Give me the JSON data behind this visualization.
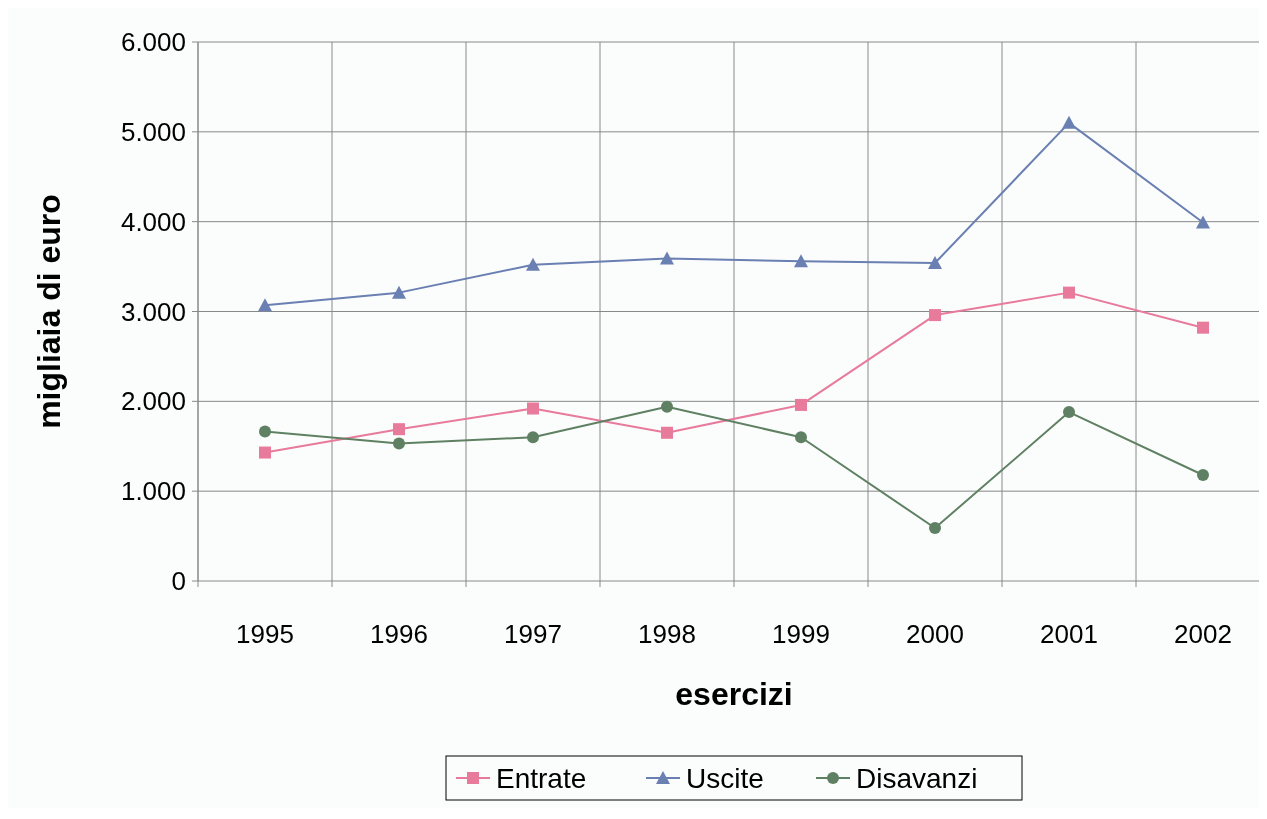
{
  "chart_data": {
    "type": "line",
    "xlabel": "esercizi",
    "ylabel": "migliaia di euro",
    "categories": [
      "1995",
      "1996",
      "1997",
      "1998",
      "1999",
      "2000",
      "2001",
      "2002"
    ],
    "series": [
      {
        "name": "Entrate",
        "color": "#e87a9c",
        "marker": "square",
        "values": [
          1430,
          1690,
          1920,
          1650,
          1960,
          2960,
          3210,
          2820
        ]
      },
      {
        "name": "Uscite",
        "color": "#6a7fb2",
        "marker": "triangle",
        "values": [
          3070,
          3210,
          3520,
          3590,
          3560,
          3540,
          5100,
          3990
        ]
      },
      {
        "name": "Disavanzi",
        "color": "#5f8062",
        "marker": "circle",
        "values": [
          1665,
          1530,
          1600,
          1940,
          1600,
          590,
          1880,
          1180
        ]
      }
    ],
    "ylim": [
      0,
      6000
    ],
    "yticks": [
      {
        "value": 0,
        "label": "0"
      },
      {
        "value": 1000,
        "label": "1.000"
      },
      {
        "value": 2000,
        "label": "2.000"
      },
      {
        "value": 3000,
        "label": "3.000"
      },
      {
        "value": 4000,
        "label": "4.000"
      },
      {
        "value": 5000,
        "label": "5.000"
      },
      {
        "value": 6000,
        "label": "6.000"
      }
    ],
    "grid": true,
    "legend": "bottom",
    "line_style": "solid"
  }
}
